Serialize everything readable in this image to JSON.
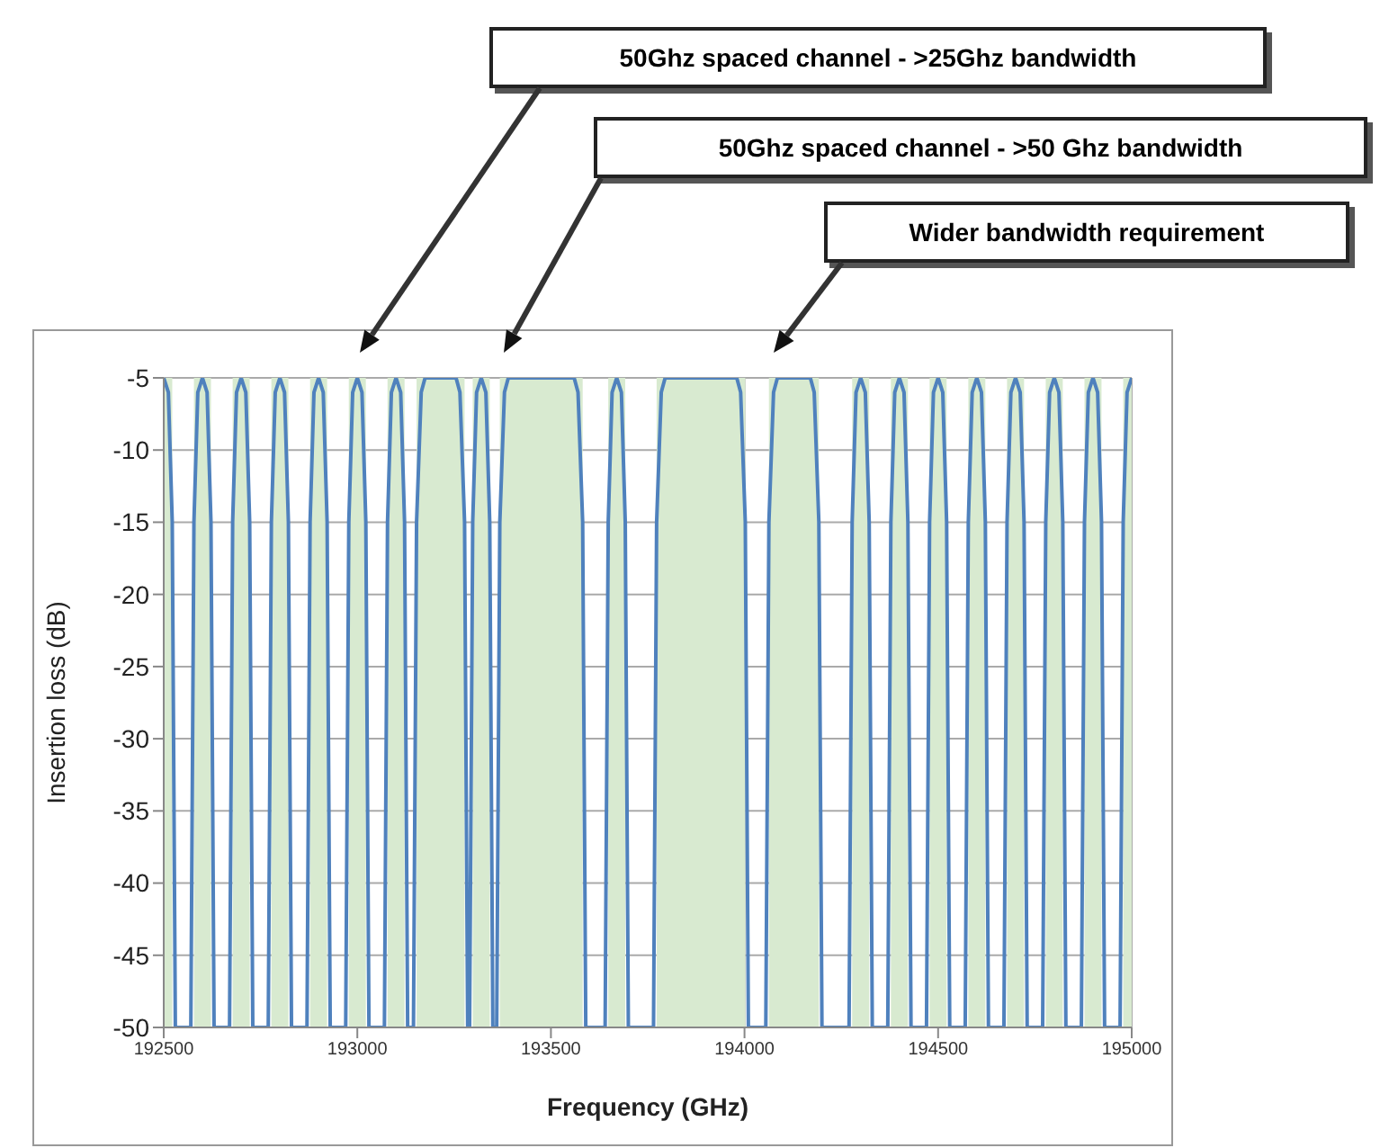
{
  "chart_data": {
    "type": "line",
    "xlabel": "Frequency (GHz)",
    "ylabel": "Insertion loss (dB)",
    "annotations": [
      "50Ghz spaced channel - >25Ghz bandwidth",
      "50Ghz spaced channel - >50 Ghz bandwidth",
      "Wider bandwidth requirement"
    ],
    "xlim": [
      192500,
      195000
    ],
    "xticks": [
      192500,
      193000,
      193500,
      194000,
      194500,
      195000
    ],
    "ylim": [
      -50,
      -5
    ],
    "yticks": [
      -5,
      -10,
      -15,
      -20,
      -25,
      -30,
      -35,
      -40,
      -45,
      -50
    ],
    "grid": true,
    "marker": "none",
    "line_style": "solid",
    "legend": false,
    "x": [
      192500,
      192512,
      192522,
      192530,
      192570,
      192578,
      192588,
      192600,
      192612,
      192622,
      192630,
      192670,
      192678,
      192688,
      192700,
      192712,
      192722,
      192730,
      192770,
      192778,
      192788,
      192800,
      192812,
      192822,
      192830,
      192870,
      192878,
      192888,
      192900,
      192912,
      192922,
      192930,
      192970,
      192978,
      192988,
      193000,
      193012,
      193022,
      193030,
      193070,
      193078,
      193088,
      193100,
      193112,
      193122,
      193130,
      193145,
      193153,
      193165,
      193175,
      193255,
      193265,
      193277,
      193285,
      193290,
      193298,
      193308,
      193320,
      193332,
      193342,
      193350,
      193360,
      193368,
      193380,
      193390,
      193560,
      193570,
      193582,
      193590,
      193640,
      193648,
      193658,
      193670,
      193682,
      193692,
      193700,
      193765,
      193773,
      193785,
      193795,
      193980,
      193990,
      194002,
      194010,
      194055,
      194063,
      194075,
      194085,
      194170,
      194180,
      194192,
      194200,
      194270,
      194278,
      194288,
      194300,
      194312,
      194322,
      194330,
      194370,
      194378,
      194388,
      194400,
      194412,
      194422,
      194430,
      194470,
      194478,
      194488,
      194500,
      194512,
      194522,
      194530,
      194570,
      194578,
      194588,
      194600,
      194612,
      194622,
      194630,
      194670,
      194678,
      194688,
      194700,
      194712,
      194722,
      194730,
      194770,
      194778,
      194788,
      194800,
      194812,
      194822,
      194830,
      194870,
      194878,
      194888,
      194900,
      194912,
      194922,
      194930,
      194970,
      194978,
      194988,
      195000
    ],
    "series": [
      {
        "color": "#4f81bd",
        "values": [
          -5,
          -6,
          -15,
          -50,
          -50,
          -15,
          -6,
          -5,
          -6,
          -15,
          -50,
          -50,
          -15,
          -6,
          -5,
          -6,
          -15,
          -50,
          -50,
          -15,
          -6,
          -5,
          -6,
          -15,
          -50,
          -50,
          -15,
          -6,
          -5,
          -6,
          -15,
          -50,
          -50,
          -15,
          -6,
          -5,
          -6,
          -15,
          -50,
          -50,
          -15,
          -6,
          -5,
          -6,
          -15,
          -50,
          -50,
          -15,
          -6,
          -5,
          -5,
          -6,
          -15,
          -50,
          -50,
          -15,
          -6,
          -5,
          -6,
          -15,
          -50,
          -50,
          -15,
          -6,
          -5,
          -5,
          -6,
          -15,
          -50,
          -50,
          -15,
          -6,
          -5,
          -6,
          -15,
          -50,
          -50,
          -15,
          -6,
          -5,
          -5,
          -6,
          -15,
          -50,
          -50,
          -15,
          -6,
          -5,
          -5,
          -6,
          -15,
          -50,
          -50,
          -15,
          -6,
          -5,
          -6,
          -15,
          -50,
          -50,
          -15,
          -6,
          -5,
          -6,
          -15,
          -50,
          -50,
          -15,
          -6,
          -5,
          -6,
          -15,
          -50,
          -50,
          -15,
          -6,
          -5,
          -6,
          -15,
          -50,
          -50,
          -15,
          -6,
          -5,
          -6,
          -15,
          -50,
          -50,
          -15,
          -6,
          -5,
          -6,
          -15,
          -50,
          -50,
          -15,
          -6,
          -5,
          -6,
          -15,
          -50,
          -50,
          -15,
          -6,
          -5
        ]
      }
    ],
    "bands": [
      {
        "axis": "x",
        "from": 192500,
        "to": 192522,
        "color": "#d8ead0"
      },
      {
        "axis": "x",
        "from": 192578,
        "to": 192622,
        "color": "#d8ead0"
      },
      {
        "axis": "x",
        "from": 192678,
        "to": 192722,
        "color": "#d8ead0"
      },
      {
        "axis": "x",
        "from": 192778,
        "to": 192822,
        "color": "#d8ead0"
      },
      {
        "axis": "x",
        "from": 192878,
        "to": 192922,
        "color": "#d8ead0"
      },
      {
        "axis": "x",
        "from": 192978,
        "to": 193022,
        "color": "#d8ead0"
      },
      {
        "axis": "x",
        "from": 193078,
        "to": 193122,
        "color": "#d8ead0"
      },
      {
        "axis": "x",
        "from": 193153,
        "to": 193277,
        "color": "#d8ead0"
      },
      {
        "axis": "x",
        "from": 193298,
        "to": 193342,
        "color": "#d8ead0"
      },
      {
        "axis": "x",
        "from": 193368,
        "to": 193582,
        "color": "#d8ead0"
      },
      {
        "axis": "x",
        "from": 193648,
        "to": 193692,
        "color": "#d8ead0"
      },
      {
        "axis": "x",
        "from": 193773,
        "to": 194002,
        "color": "#d8ead0"
      },
      {
        "axis": "x",
        "from": 194063,
        "to": 194192,
        "color": "#d8ead0"
      },
      {
        "axis": "x",
        "from": 194278,
        "to": 194322,
        "color": "#d8ead0"
      },
      {
        "axis": "x",
        "from": 194378,
        "to": 194422,
        "color": "#d8ead0"
      },
      {
        "axis": "x",
        "from": 194478,
        "to": 194522,
        "color": "#d8ead0"
      },
      {
        "axis": "x",
        "from": 194578,
        "to": 194622,
        "color": "#d8ead0"
      },
      {
        "axis": "x",
        "from": 194678,
        "to": 194722,
        "color": "#d8ead0"
      },
      {
        "axis": "x",
        "from": 194778,
        "to": 194822,
        "color": "#d8ead0"
      },
      {
        "axis": "x",
        "from": 194878,
        "to": 194922,
        "color": "#d8ead0"
      },
      {
        "axis": "x",
        "from": 194978,
        "to": 195000,
        "color": "#d8ead0"
      }
    ]
  }
}
